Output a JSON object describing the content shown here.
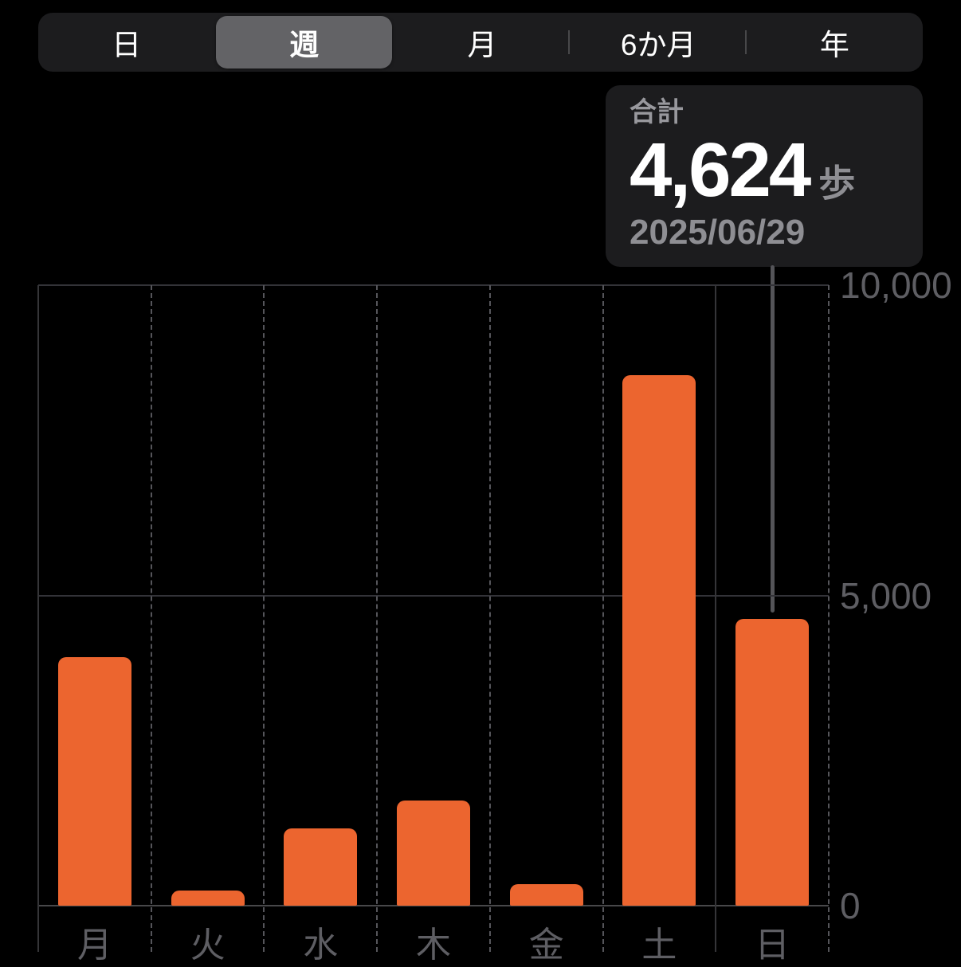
{
  "time_range_selector": {
    "options": [
      {
        "label": "日",
        "selected": false
      },
      {
        "label": "週",
        "selected": true
      },
      {
        "label": "月",
        "selected": false
      },
      {
        "label": "6か月",
        "selected": false
      },
      {
        "label": "年",
        "selected": false
      }
    ]
  },
  "tooltip": {
    "label": "合計",
    "value": "4,624",
    "unit": "歩",
    "date": "2025/06/29"
  },
  "chart_data": {
    "type": "bar",
    "title": "",
    "categories": [
      "月",
      "火",
      "水",
      "木",
      "金",
      "土",
      "日"
    ],
    "values": [
      4000,
      250,
      1250,
      1700,
      350,
      8550,
      4624
    ],
    "unit": "歩",
    "ylim": [
      0,
      10000
    ],
    "yticks": [
      {
        "value": 0,
        "label": "0"
      },
      {
        "value": 5000,
        "label": "5,000"
      },
      {
        "value": 10000,
        "label": "10,000"
      }
    ],
    "ytick_side": "right",
    "legend": "none",
    "grid": {
      "horizontal": "solid",
      "vertical": "dashed column separators"
    },
    "selected_index": 6,
    "selection": {
      "category": "日",
      "total": "4,624",
      "date": "2025/06/29"
    }
  },
  "colors": {
    "background": "#000000",
    "bar": "#EC652F",
    "panel_background": "#1C1C1E",
    "segment_selected": "#636366",
    "axis_label": "#5E5E63",
    "primary_text": "#FFFFFF",
    "secondary_text": "#8E8E93"
  }
}
